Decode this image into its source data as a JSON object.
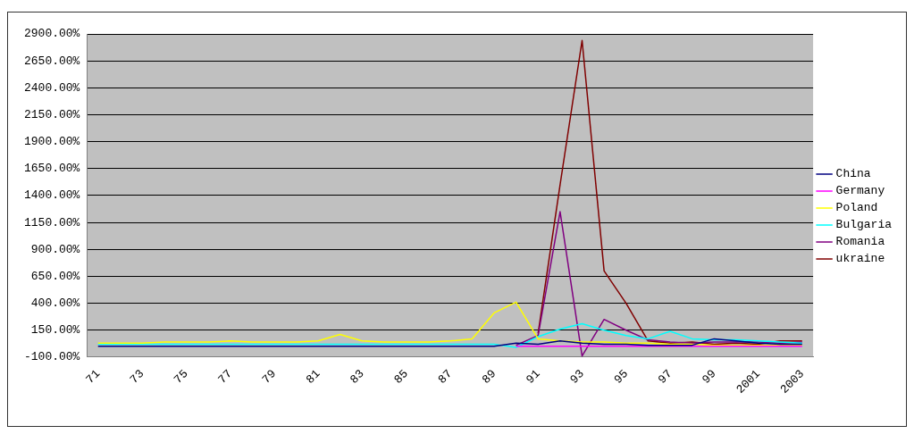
{
  "chart_data": {
    "type": "line",
    "categories": [
      "71",
      null,
      "73",
      null,
      "75",
      null,
      "77",
      null,
      "79",
      null,
      "81",
      null,
      "83",
      null,
      "85",
      null,
      "87",
      null,
      "89",
      null,
      "91",
      null,
      "93",
      null,
      "95",
      null,
      "97",
      null,
      "99",
      null,
      "2001",
      null,
      "2003"
    ],
    "series": [
      {
        "name": "China",
        "color": "#000080",
        "values": [
          0,
          0,
          0,
          0,
          0,
          0,
          0,
          0,
          0,
          0,
          0,
          0,
          0,
          0,
          0,
          0,
          0,
          0,
          0,
          30,
          20,
          50,
          30,
          20,
          20,
          10,
          10,
          10,
          70,
          50,
          30,
          20,
          20
        ]
      },
      {
        "name": "Germany",
        "color": "#ff00ff",
        "values": [
          null,
          null,
          null,
          null,
          null,
          null,
          null,
          null,
          null,
          null,
          null,
          null,
          null,
          null,
          null,
          null,
          null,
          null,
          null,
          0,
          0,
          0,
          0,
          0,
          0,
          0,
          0,
          0,
          0,
          0,
          0,
          0,
          0
        ]
      },
      {
        "name": "Poland",
        "color": "#ffff00",
        "values": [
          30,
          30,
          30,
          40,
          40,
          40,
          50,
          40,
          40,
          40,
          50,
          110,
          50,
          40,
          40,
          40,
          50,
          70,
          310,
          410,
          70,
          50,
          40,
          40,
          30,
          30,
          20,
          20,
          10,
          10,
          10,
          10,
          10
        ]
      },
      {
        "name": "Bulgaria",
        "color": "#00ffff",
        "values": [
          20,
          20,
          20,
          20,
          20,
          20,
          20,
          20,
          20,
          20,
          20,
          20,
          20,
          20,
          20,
          20,
          20,
          20,
          20,
          -10,
          90,
          160,
          210,
          150,
          100,
          70,
          140,
          70,
          60,
          60,
          50,
          40,
          30
        ]
      },
      {
        "name": "Romania",
        "color": "#800080",
        "values": [
          null,
          null,
          null,
          null,
          null,
          null,
          null,
          null,
          null,
          null,
          null,
          null,
          null,
          null,
          null,
          null,
          null,
          null,
          null,
          10,
          100,
          1250,
          -90,
          250,
          150,
          60,
          40,
          30,
          40,
          40,
          40,
          30,
          40
        ]
      },
      {
        "name": "ukraine",
        "color": "#800000",
        "values": [
          null,
          null,
          null,
          null,
          null,
          null,
          null,
          null,
          null,
          null,
          null,
          null,
          null,
          null,
          null,
          null,
          null,
          null,
          null,
          null,
          120,
          1500,
          2840,
          700,
          400,
          50,
          30,
          40,
          20,
          30,
          20,
          50,
          50
        ]
      }
    ],
    "ylim": [
      -100,
      2900
    ],
    "yticks": [
      {
        "value": -100,
        "label": "-100.00%"
      },
      {
        "value": 150,
        "label": "150.00%"
      },
      {
        "value": 400,
        "label": "400.00%"
      },
      {
        "value": 650,
        "label": "650.00%"
      },
      {
        "value": 900,
        "label": "900.00%"
      },
      {
        "value": 1150,
        "label": "1150.00%"
      },
      {
        "value": 1400,
        "label": "1400.00%"
      },
      {
        "value": 1650,
        "label": "1650.00%"
      },
      {
        "value": 1900,
        "label": "1900.00%"
      },
      {
        "value": 2150,
        "label": "2150.00%"
      },
      {
        "value": 2400,
        "label": "2400.00%"
      },
      {
        "value": 2650,
        "label": "2650.00%"
      },
      {
        "value": 2900,
        "label": "2900.00%"
      }
    ],
    "grid": "y",
    "legend": "right",
    "marker": "none",
    "line_style": "solid"
  }
}
